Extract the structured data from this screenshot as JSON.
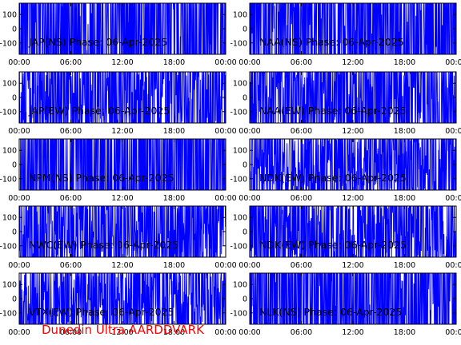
{
  "footer": "Dunedin Ultra AARDDVARK",
  "trace_color": "#0000ff",
  "footer_color": "#ff0000",
  "chart_data": [
    {
      "type": "line",
      "title": "JAP(NS) Phase: 06-Apr-2025",
      "y_ticks": [
        100,
        0,
        -100
      ],
      "ylim": [
        -180,
        180
      ],
      "x_ticks": [
        "00:00",
        "06:00",
        "12:00",
        "18:00",
        "00:00"
      ],
      "xlim": [
        "00:00",
        "24:00"
      ],
      "density": 0.97
    },
    {
      "type": "line",
      "title": "NAA(NS) Phase: 06-Apr-2025",
      "y_ticks": [
        100,
        0,
        -100
      ],
      "ylim": [
        -180,
        180
      ],
      "x_ticks": [
        "00:00",
        "06:00",
        "12:00",
        "18:00",
        "00:00"
      ],
      "xlim": [
        "00:00",
        "24:00"
      ],
      "density": 0.95
    },
    {
      "type": "line",
      "title": "JAP(EW) Phase: 06-Apr-2025",
      "y_ticks": [
        100,
        0,
        -100
      ],
      "ylim": [
        -180,
        180
      ],
      "x_ticks": [
        "00:00",
        "06:00",
        "12:00",
        "18:00",
        "00:00"
      ],
      "xlim": [
        "00:00",
        "24:00"
      ],
      "density": 0.75
    },
    {
      "type": "line",
      "title": "NAA(EW) Phase: 06-Apr-2025",
      "y_ticks": [
        100,
        0,
        -100
      ],
      "ylim": [
        -180,
        180
      ],
      "x_ticks": [
        "00:00",
        "06:00",
        "12:00",
        "18:00",
        "00:00"
      ],
      "xlim": [
        "00:00",
        "24:00"
      ],
      "density": 0.72
    },
    {
      "type": "line",
      "title": "NPM(NS) Phase: 06-Apr-2025",
      "y_ticks": [
        100,
        0,
        -100
      ],
      "ylim": [
        -180,
        180
      ],
      "x_ticks": [
        "00:00",
        "06:00",
        "12:00",
        "18:00",
        "00:00"
      ],
      "xlim": [
        "00:00",
        "24:00"
      ],
      "density": 1.0
    },
    {
      "type": "line",
      "title": "NDK(EW) Phase: 06-Apr-2025",
      "y_ticks": [
        100,
        0,
        -100
      ],
      "ylim": [
        -180,
        180
      ],
      "x_ticks": [
        "00:00",
        "06:00",
        "12:00",
        "18:00",
        "00:00"
      ],
      "xlim": [
        "00:00",
        "24:00"
      ],
      "density": 0.62
    },
    {
      "type": "line",
      "title": "NWC(EW) Phase: 06-Apr-2025",
      "y_ticks": [
        100,
        0,
        -100
      ],
      "ylim": [
        -180,
        180
      ],
      "x_ticks": [
        "00:00",
        "06:00",
        "12:00",
        "18:00",
        "00:00"
      ],
      "xlim": [
        "00:00",
        "24:00"
      ],
      "density": 0.7
    },
    {
      "type": "line",
      "title": "NDK(EW) Phase: 06-Apr-2025",
      "y_ticks": [
        100,
        0,
        -100
      ],
      "ylim": [
        -180,
        180
      ],
      "x_ticks": [
        "00:00",
        "06:00",
        "12:00",
        "18:00",
        "00:00"
      ],
      "xlim": [
        "00:00",
        "24:00"
      ],
      "density": 0.7
    },
    {
      "type": "line",
      "title": "VTX(EW) Phase: 06-Apr-2025",
      "y_ticks": [
        100,
        0,
        -100
      ],
      "ylim": [
        -180,
        180
      ],
      "x_ticks": [
        "00:00",
        "06:00",
        "12:00",
        "18:00",
        "00:00"
      ],
      "xlim": [
        "00:00",
        "24:00"
      ],
      "density": 0.6
    },
    {
      "type": "line",
      "title": "NLK(NS) Phase: 06-Apr-2025",
      "y_ticks": [
        100,
        0,
        -100
      ],
      "ylim": [
        -180,
        180
      ],
      "x_ticks": [
        "00:00",
        "06:00",
        "12:00",
        "18:00",
        "00:00"
      ],
      "xlim": [
        "00:00",
        "24:00"
      ],
      "density": 0.95
    }
  ]
}
